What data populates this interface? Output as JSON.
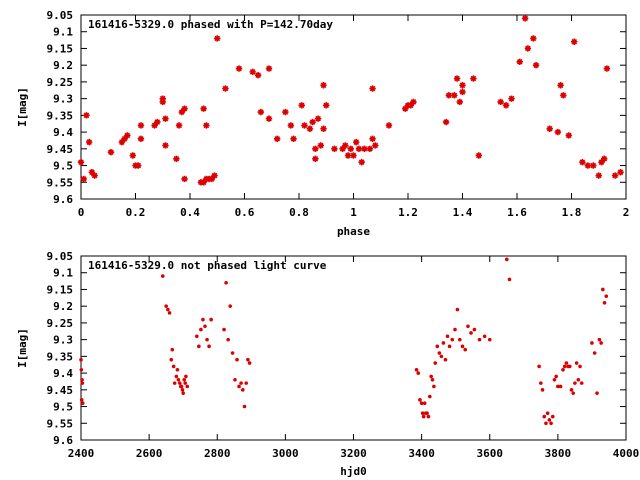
{
  "chart_data": [
    {
      "type": "scatter",
      "title": "161416-5329.0 phased with P=142.70day",
      "xlabel": "phase",
      "ylabel": "I[mag]",
      "xlim": [
        0,
        2
      ],
      "ylim": [
        9.6,
        9.05
      ],
      "y_inverted": true,
      "xticks": [
        "0",
        "0.2",
        "0.4",
        "0.6",
        "0.8",
        "1",
        "1.2",
        "1.4",
        "1.6",
        "1.8",
        "2"
      ],
      "yticks": [
        "9.05",
        "9.1",
        "9.15",
        "9.2",
        "9.25",
        "9.3",
        "9.35",
        "9.4",
        "9.45",
        "9.5",
        "9.55",
        "9.6"
      ],
      "marker_color": "#dd0000",
      "marker": "star",
      "x": [
        0.0,
        0.01,
        0.02,
        0.03,
        0.04,
        0.05,
        0.11,
        0.15,
        0.16,
        0.17,
        0.19,
        0.2,
        0.21,
        0.22,
        0.22,
        0.27,
        0.28,
        0.3,
        0.3,
        0.31,
        0.31,
        0.35,
        0.36,
        0.37,
        0.38,
        0.38,
        0.44,
        0.45,
        0.46,
        0.47,
        0.48,
        0.49,
        0.5,
        0.45,
        0.46,
        0.53,
        0.58,
        0.63,
        0.65,
        0.66,
        0.69,
        0.69,
        0.72,
        0.75,
        0.77,
        0.78,
        0.81,
        0.82,
        0.84,
        0.85,
        0.86,
        0.86,
        0.87,
        0.88,
        0.89,
        0.89,
        0.9,
        0.93,
        0.96,
        0.97,
        0.98,
        0.99,
        1.0,
        1.01,
        1.02,
        1.03,
        1.04,
        1.06,
        1.07,
        1.07,
        1.08,
        1.13,
        1.19,
        1.2,
        1.21,
        1.22,
        1.34,
        1.35,
        1.37,
        1.38,
        1.39,
        1.4,
        1.4,
        1.44,
        1.46,
        1.54,
        1.56,
        1.58,
        1.61,
        1.63,
        1.64,
        1.66,
        1.67,
        1.72,
        1.75,
        1.76,
        1.77,
        1.79,
        1.81,
        1.84,
        1.86,
        1.88,
        1.9,
        1.91,
        1.92,
        1.93,
        1.96,
        1.98
      ],
      "y": [
        9.49,
        9.54,
        9.35,
        9.43,
        9.52,
        9.53,
        9.46,
        9.43,
        9.42,
        9.41,
        9.47,
        9.5,
        9.5,
        9.42,
        9.38,
        9.38,
        9.37,
        9.3,
        9.31,
        9.44,
        9.36,
        9.48,
        9.38,
        9.34,
        9.33,
        9.54,
        9.55,
        9.55,
        9.54,
        9.54,
        9.54,
        9.53,
        9.12,
        9.33,
        9.38,
        9.27,
        9.21,
        9.22,
        9.23,
        9.34,
        9.21,
        9.36,
        9.42,
        9.34,
        9.38,
        9.42,
        9.32,
        9.38,
        9.39,
        9.37,
        9.48,
        9.45,
        9.36,
        9.44,
        9.26,
        9.39,
        9.32,
        9.45,
        9.45,
        9.44,
        9.47,
        9.45,
        9.47,
        9.43,
        9.45,
        9.49,
        9.45,
        9.45,
        9.27,
        9.42,
        9.44,
        9.38,
        9.33,
        9.32,
        9.32,
        9.31,
        9.37,
        9.29,
        9.29,
        9.24,
        9.31,
        9.28,
        9.26,
        9.24,
        9.47,
        9.31,
        9.32,
        9.3,
        9.19,
        9.06,
        9.15,
        9.12,
        9.2,
        9.39,
        9.4,
        9.26,
        9.29,
        9.41,
        9.13,
        9.49,
        9.5,
        9.5,
        9.53,
        9.49,
        9.48,
        9.21,
        9.53,
        9.52
      ]
    },
    {
      "type": "scatter",
      "title": "161416-5329.0 not phased light curve",
      "xlabel": "hjd0",
      "ylabel": "I[mag]",
      "xlim": [
        2400,
        4000
      ],
      "ylim": [
        9.6,
        9.05
      ],
      "y_inverted": true,
      "xticks": [
        "2400",
        "2600",
        "2800",
        "3000",
        "3200",
        "3400",
        "3600",
        "3800",
        "4000"
      ],
      "yticks": [
        "9.05",
        "9.1",
        "9.15",
        "9.2",
        "9.25",
        "9.3",
        "9.35",
        "9.4",
        "9.45",
        "9.5",
        "9.55",
        "9.6"
      ],
      "marker_color": "#dd0000",
      "marker": "dot",
      "x": [
        2400,
        2401,
        2402,
        2403,
        2404,
        2405,
        2640,
        2650,
        2655,
        2660,
        2665,
        2668,
        2672,
        2675,
        2680,
        2683,
        2686,
        2690,
        2693,
        2695,
        2698,
        2700,
        2703,
        2706,
        2708,
        2712,
        2740,
        2746,
        2752,
        2758,
        2764,
        2770,
        2776,
        2782,
        2820,
        2826,
        2832,
        2838,
        2845,
        2852,
        2858,
        2864,
        2870,
        2875,
        2880,
        2885,
        2890,
        2895,
        3385,
        3390,
        3395,
        3400,
        3403,
        3406,
        3409,
        3412,
        3416,
        3420,
        3424,
        3428,
        3432,
        3436,
        3440,
        3446,
        3452,
        3458,
        3464,
        3470,
        3476,
        3482,
        3490,
        3498,
        3505,
        3512,
        3520,
        3528,
        3536,
        3545,
        3555,
        3570,
        3585,
        3600,
        3650,
        3658,
        3745,
        3750,
        3755,
        3760,
        3765,
        3770,
        3775,
        3780,
        3785,
        3790,
        3795,
        3800,
        3808,
        3815,
        3820,
        3825,
        3830,
        3835,
        3840,
        3845,
        3850,
        3855,
        3860,
        3865,
        3870,
        3900,
        3908,
        3915,
        3922,
        3927,
        3932,
        3937,
        3942
      ],
      "y": [
        9.36,
        9.39,
        9.48,
        9.42,
        9.43,
        9.49,
        9.11,
        9.2,
        9.21,
        9.22,
        9.36,
        9.33,
        9.38,
        9.43,
        9.41,
        9.39,
        9.42,
        9.43,
        9.44,
        9.44,
        9.45,
        9.46,
        9.42,
        9.43,
        9.41,
        9.44,
        9.29,
        9.32,
        9.27,
        9.24,
        9.26,
        9.3,
        9.32,
        9.24,
        9.27,
        9.13,
        9.3,
        9.2,
        9.34,
        9.42,
        9.36,
        9.44,
        9.43,
        9.45,
        9.5,
        9.43,
        9.36,
        9.37,
        9.39,
        9.4,
        9.48,
        9.49,
        9.52,
        9.53,
        9.49,
        9.52,
        9.52,
        9.53,
        9.47,
        9.41,
        9.42,
        9.44,
        9.37,
        9.32,
        9.34,
        9.35,
        9.31,
        9.36,
        9.29,
        9.32,
        9.3,
        9.27,
        9.21,
        9.3,
        9.32,
        9.33,
        9.26,
        9.28,
        9.27,
        9.3,
        9.29,
        9.3,
        9.06,
        9.12,
        9.38,
        9.43,
        9.45,
        9.53,
        9.55,
        9.52,
        9.54,
        9.55,
        9.53,
        9.42,
        9.41,
        9.44,
        9.44,
        9.39,
        9.38,
        9.37,
        9.38,
        9.38,
        9.45,
        9.46,
        9.43,
        9.37,
        9.42,
        9.38,
        9.43,
        9.31,
        9.34,
        9.46,
        9.3,
        9.31,
        9.15,
        9.19,
        9.17
      ]
    }
  ]
}
